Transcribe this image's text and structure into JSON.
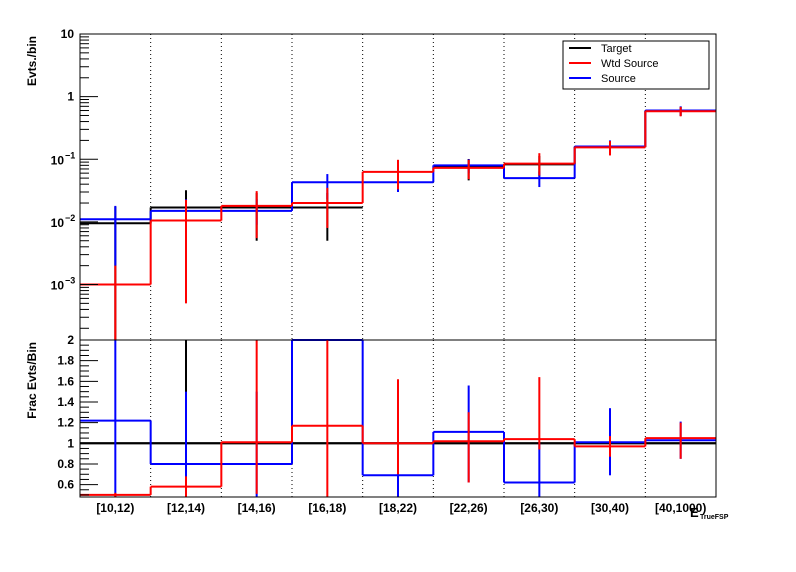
{
  "chart_data": [
    {
      "type": "histogram",
      "panel": "top",
      "ylabel": "Evts./bin",
      "yscale": "log",
      "ylim": [
        0.00013,
        10
      ],
      "ytick_labels": [
        {
          "v": 10,
          "t": "10"
        },
        {
          "v": 1,
          "t": "1"
        },
        {
          "v": 0.1,
          "base": "10",
          "exp": "−1"
        },
        {
          "v": 0.01,
          "base": "10",
          "exp": "−2"
        },
        {
          "v": 0.001,
          "base": "10",
          "exp": "−3"
        }
      ],
      "categories": [
        "[10,12)",
        "[12,14)",
        "[14,16)",
        "[16,18)",
        "[18,22)",
        "[22,26)",
        "[26,30)",
        "[30,40)",
        "[40,1000)"
      ],
      "series": [
        {
          "name": "Target",
          "color": "#000000",
          "values": [
            0.0095,
            0.017,
            0.017,
            0.017,
            null,
            0.076,
            0.083,
            0.157,
            0.59
          ],
          "err_low": [
            0.0095,
            0.011,
            0.012,
            0.012,
            null,
            0.03,
            0.03,
            0.04,
            0.1
          ],
          "err_high": [
            0.008,
            0.015,
            0.012,
            0.012,
            null,
            0.025,
            0.03,
            0.04,
            0.1
          ]
        },
        {
          "name": "Wtd Source",
          "color": "#ff0000",
          "values": [
            0.001,
            0.0105,
            0.018,
            0.02,
            0.063,
            0.073,
            0.085,
            0.155,
            0.585
          ],
          "err_low": [
            0.001,
            0.01,
            0.0125,
            0.012,
            0.03,
            0.025,
            0.03,
            0.04,
            0.1
          ],
          "err_high": [
            0.001,
            0.012,
            0.013,
            0.015,
            0.035,
            0.025,
            0.04,
            0.04,
            0.1
          ]
        },
        {
          "name": "Source",
          "color": "#0000ff",
          "values": [
            0.011,
            0.015,
            0.015,
            0.043,
            0.043,
            0.08,
            0.05,
            0.16,
            0.6
          ],
          "err_low": [
            0.009,
            0.008,
            0.006,
            0.02,
            0.013,
            0.02,
            0.014,
            0.04,
            0.1
          ],
          "err_high": [
            0.007,
            0.008,
            0.008,
            0.015,
            0.013,
            0.02,
            0.014,
            0.04,
            0.1
          ]
        }
      ],
      "legend": {
        "position": "top-right",
        "entries": [
          "Target",
          "Wtd Source",
          "Source"
        ]
      }
    },
    {
      "type": "histogram",
      "panel": "bottom",
      "ylabel": "Frac Evts/Bin",
      "xlabel": "E_{TrueFSP}",
      "xlabel_main": "E",
      "xlabel_sub": "TrueFSP",
      "ylim": [
        0.48,
        2.0
      ],
      "yticks": [
        "0.6",
        "0.8",
        "1",
        "1.2",
        "1.4",
        "1.6",
        "1.8",
        "2"
      ],
      "categories": [
        "[10,12)",
        "[12,14)",
        "[14,16)",
        "[16,18)",
        "[18,22)",
        "[22,26)",
        "[26,30)",
        "[30,40)",
        "[40,1000)"
      ],
      "reference_line": 1.0,
      "series": [
        {
          "name": "Wtd Source",
          "color": "#ff0000",
          "values": [
            0.5,
            0.58,
            1.01,
            1.17,
            1.0,
            1.02,
            1.04,
            0.97,
            1.05
          ],
          "err_low": [
            0.02,
            0.1,
            0.5,
            0.7,
            0.3,
            0.4,
            0.1,
            0.1,
            0.2
          ],
          "err_high": [
            0.02,
            0.1,
            0.99,
            0.83,
            0.62,
            0.28,
            0.6,
            0.1,
            0.15
          ]
        },
        {
          "name": "Source",
          "color": "#0000ff",
          "values": [
            1.22,
            0.8,
            0.8,
            2.0,
            0.69,
            1.11,
            0.62,
            1.01,
            1.03
          ],
          "err_low": [
            0.74,
            0.32,
            0.32,
            0.0,
            0.21,
            0.49,
            0.14,
            0.32,
            0.18
          ],
          "err_high": [
            0.78,
            0.7,
            0.7,
            0.0,
            0.31,
            0.45,
            0.38,
            0.33,
            0.18
          ]
        },
        {
          "name": "Target",
          "color": "#000000",
          "values": [
            1.0,
            1.0,
            1.0,
            1.0,
            1.0,
            1.0,
            1.0,
            1.0,
            1.0
          ],
          "err_low": [
            0.0,
            0.0,
            0.0,
            0.0,
            0.0,
            0.0,
            0.0,
            0.0,
            0.0
          ],
          "err_high": [
            0.0,
            1.0,
            0.0,
            0.0,
            0.0,
            0.0,
            0.0,
            0.0,
            0.0
          ]
        }
      ]
    }
  ]
}
